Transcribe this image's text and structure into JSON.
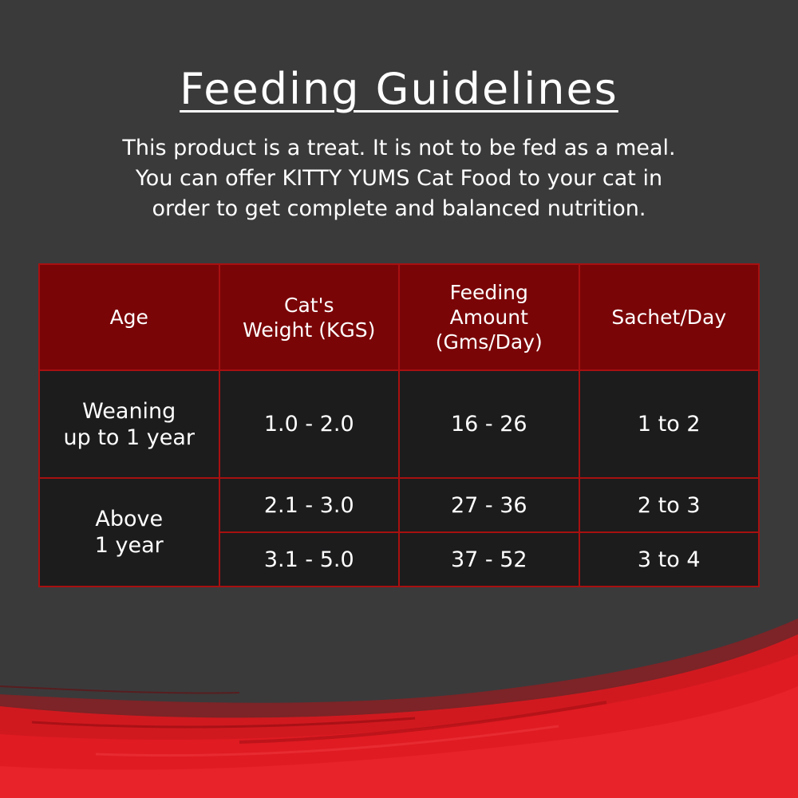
{
  "title": "Feeding Guidelines",
  "intro_lines": [
    "This product is a treat. It is not to be fed as a meal.",
    "You can offer KITTY YUMS Cat Food to your cat in",
    "order to get complete and balanced nutrition."
  ],
  "table": {
    "headers": [
      [
        "Age"
      ],
      [
        "Cat's",
        "Weight (KGS)"
      ],
      [
        "Feeding",
        "Amount",
        "(Gms/Day)"
      ],
      [
        "Sachet/Day"
      ]
    ],
    "groups": [
      {
        "age": [
          "Weaning",
          "up to 1 year"
        ],
        "rows": [
          {
            "weight": "1.0 - 2.0",
            "amount": "16 - 26",
            "sachet": "1 to 2"
          }
        ]
      },
      {
        "age": [
          "Above",
          "1 year"
        ],
        "rows": [
          {
            "weight": "2.1 - 3.0",
            "amount": "27 - 36",
            "sachet": "2 to 3"
          },
          {
            "weight": "3.1 - 5.0",
            "amount": "37 - 52",
            "sachet": "3 to 4"
          }
        ]
      }
    ]
  },
  "colors": {
    "background": "#3a3a3b",
    "header_fill": "#7a0507",
    "cell_fill": "#1c1c1d",
    "border": "#a81010",
    "swoosh_red": "#e01b22"
  }
}
